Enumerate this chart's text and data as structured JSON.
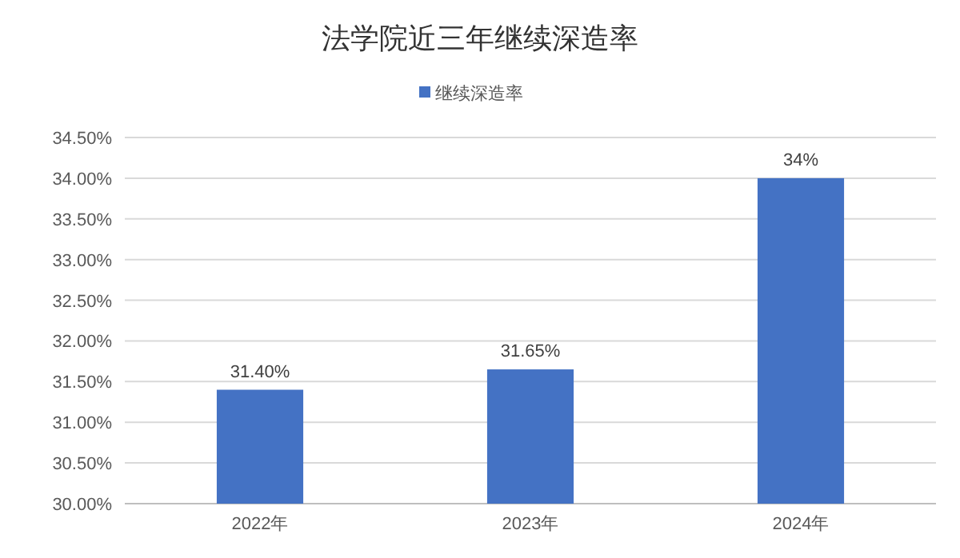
{
  "chart_data": {
    "type": "bar",
    "title": "法学院近三年继续深造率",
    "categories": [
      "2022年",
      "2023年",
      "2024年"
    ],
    "series": [
      {
        "name": "继续深造率",
        "color": "#4472c4",
        "values": [
          31.4,
          31.65,
          34
        ],
        "value_labels": [
          "31.40%",
          "31.65%",
          "34%"
        ]
      }
    ],
    "ylim": [
      30,
      34.5
    ],
    "yticks": [
      {
        "value": 30,
        "label": "30.00%"
      },
      {
        "value": 30.5,
        "label": "30.50%"
      },
      {
        "value": 31,
        "label": "31.00%"
      },
      {
        "value": 31.5,
        "label": "31.50%"
      },
      {
        "value": 32,
        "label": "32.00%"
      },
      {
        "value": 32.5,
        "label": "32.50%"
      },
      {
        "value": 33,
        "label": "33.00%"
      },
      {
        "value": 33.5,
        "label": "33.50%"
      },
      {
        "value": 34,
        "label": "34.00%"
      },
      {
        "value": 34.5,
        "label": "34.50%"
      }
    ],
    "grid": "y",
    "legend": "top"
  }
}
